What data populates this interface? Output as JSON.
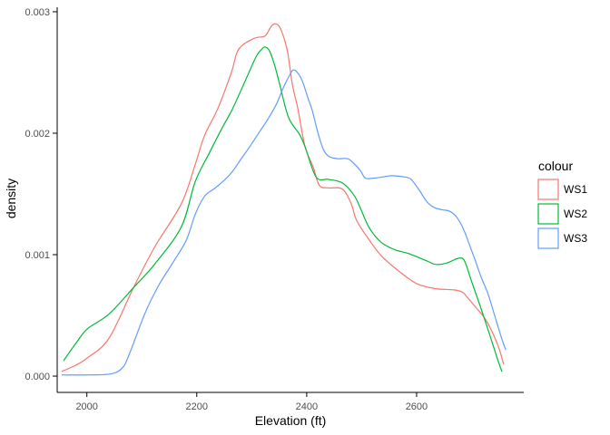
{
  "figure": {
    "background": "#FFFFFF"
  },
  "chart_data": {
    "type": "line",
    "subtype": "kernel-density",
    "title": "",
    "xlabel": "Elevation (ft)",
    "ylabel": "density",
    "xlim": [
      1946,
      2795
    ],
    "ylim": [
      -0.000134,
      0.003037
    ],
    "grid": "off",
    "axis_line_color": "#000000",
    "tick_label_color": "#4D4D4D",
    "x_ticks": {
      "values": [
        2000,
        2200,
        2400,
        2600
      ],
      "labels": [
        "2000",
        "2200",
        "2400",
        "2600"
      ]
    },
    "y_ticks": {
      "values": [
        0,
        0.001,
        0.002,
        0.003
      ],
      "labels": [
        "0.000",
        "0.001",
        "0.002",
        "0.003"
      ]
    },
    "legend": {
      "title": "colour",
      "position": "right",
      "entries": [
        {
          "label": "WS1",
          "color": "#F8766D"
        },
        {
          "label": "WS2",
          "color": "#00BA38"
        },
        {
          "label": "WS3",
          "color": "#619CFF"
        }
      ]
    },
    "series": [
      {
        "name": "WS1",
        "color": "#F8766D",
        "points": [
          [
            1955,
            4e-05
          ],
          [
            1980,
            9e-05
          ],
          [
            2001,
            0.00015
          ],
          [
            2040,
            0.00031
          ],
          [
            2085,
            0.00073
          ],
          [
            2123,
            0.00106
          ],
          [
            2172,
            0.00142
          ],
          [
            2197,
            0.00174
          ],
          [
            2214,
            0.00198
          ],
          [
            2238,
            0.0022
          ],
          [
            2263,
            0.0025
          ],
          [
            2276,
            0.00269
          ],
          [
            2304,
            0.00278
          ],
          [
            2324,
            0.0028
          ],
          [
            2334,
            0.00287
          ],
          [
            2341,
            0.0029
          ],
          [
            2350,
            0.00288
          ],
          [
            2359,
            0.00278
          ],
          [
            2366,
            0.00265
          ],
          [
            2374,
            0.0024
          ],
          [
            2384,
            0.0022
          ],
          [
            2397,
            0.00189
          ],
          [
            2412,
            0.00172
          ],
          [
            2423,
            0.00157
          ],
          [
            2440,
            0.00155
          ],
          [
            2465,
            0.00154
          ],
          [
            2481,
            0.00142
          ],
          [
            2491,
            0.00128
          ],
          [
            2514,
            0.00112
          ],
          [
            2536,
            0.00099
          ],
          [
            2569,
            0.00086
          ],
          [
            2601,
            0.00076
          ],
          [
            2634,
            0.00072
          ],
          [
            2668,
            0.00071
          ],
          [
            2684,
            0.00069
          ],
          [
            2692,
            0.00065
          ],
          [
            2709,
            0.00056
          ],
          [
            2725,
            0.00047
          ],
          [
            2742,
            0.00032
          ],
          [
            2752,
            0.0002
          ],
          [
            2758,
            0.0001
          ]
        ]
      },
      {
        "name": "WS2",
        "color": "#00BA38",
        "points": [
          [
            1958,
            0.00013
          ],
          [
            1980,
            0.00027
          ],
          [
            2001,
            0.00039
          ],
          [
            2040,
            0.00051
          ],
          [
            2085,
            0.00073
          ],
          [
            2123,
            0.00092
          ],
          [
            2172,
            0.00123
          ],
          [
            2197,
            0.0016
          ],
          [
            2222,
            0.00183
          ],
          [
            2247,
            0.00205
          ],
          [
            2265,
            0.0022
          ],
          [
            2288,
            0.00243
          ],
          [
            2308,
            0.00263
          ],
          [
            2318,
            0.00269
          ],
          [
            2324,
            0.00271
          ],
          [
            2332,
            0.00268
          ],
          [
            2341,
            0.00257
          ],
          [
            2351,
            0.0024
          ],
          [
            2367,
            0.00213
          ],
          [
            2387,
            0.00199
          ],
          [
            2397,
            0.00189
          ],
          [
            2417,
            0.00164
          ],
          [
            2440,
            0.00162
          ],
          [
            2465,
            0.00159
          ],
          [
            2486,
            0.00149
          ],
          [
            2498,
            0.00138
          ],
          [
            2514,
            0.00122
          ],
          [
            2536,
            0.0011
          ],
          [
            2561,
            0.00104
          ],
          [
            2585,
            0.00101
          ],
          [
            2618,
            0.00095
          ],
          [
            2634,
            0.00092
          ],
          [
            2654,
            0.00093
          ],
          [
            2676,
            0.00097
          ],
          [
            2687,
            0.00095
          ],
          [
            2700,
            0.00078
          ],
          [
            2717,
            0.00056
          ],
          [
            2733,
            0.00034
          ],
          [
            2748,
            0.00013
          ],
          [
            2755,
            4e-05
          ]
        ]
      },
      {
        "name": "WS3",
        "color": "#619CFF",
        "points": [
          [
            1955,
            1e-05
          ],
          [
            2007,
            1e-05
          ],
          [
            2045,
            2e-05
          ],
          [
            2065,
            7e-05
          ],
          [
            2078,
            0.00019
          ],
          [
            2106,
            0.00052
          ],
          [
            2131,
            0.00075
          ],
          [
            2156,
            0.00093
          ],
          [
            2181,
            0.00112
          ],
          [
            2197,
            0.00133
          ],
          [
            2214,
            0.00148
          ],
          [
            2231,
            0.00154
          ],
          [
            2247,
            0.0016
          ],
          [
            2264,
            0.00168
          ],
          [
            2281,
            0.00179
          ],
          [
            2298,
            0.0019
          ],
          [
            2314,
            0.00201
          ],
          [
            2330,
            0.00212
          ],
          [
            2345,
            0.00224
          ],
          [
            2358,
            0.00238
          ],
          [
            2368,
            0.00247
          ],
          [
            2375,
            0.00252
          ],
          [
            2383,
            0.0025
          ],
          [
            2392,
            0.00243
          ],
          [
            2403,
            0.00228
          ],
          [
            2410,
            0.00219
          ],
          [
            2420,
            0.00201
          ],
          [
            2430,
            0.00187
          ],
          [
            2440,
            0.00181
          ],
          [
            2456,
            0.00179
          ],
          [
            2474,
            0.00179
          ],
          [
            2486,
            0.00175
          ],
          [
            2498,
            0.00169
          ],
          [
            2507,
            0.00163
          ],
          [
            2522,
            0.00163
          ],
          [
            2539,
            0.00164
          ],
          [
            2555,
            0.00165
          ],
          [
            2577,
            0.00164
          ],
          [
            2590,
            0.00162
          ],
          [
            2605,
            0.00153
          ],
          [
            2618,
            0.00144
          ],
          [
            2631,
            0.00139
          ],
          [
            2646,
            0.00137
          ],
          [
            2659,
            0.00136
          ],
          [
            2671,
            0.00132
          ],
          [
            2681,
            0.00125
          ],
          [
            2689,
            0.00117
          ],
          [
            2697,
            0.00107
          ],
          [
            2707,
            0.00095
          ],
          [
            2717,
            0.00082
          ],
          [
            2729,
            0.00069
          ],
          [
            2738,
            0.00056
          ],
          [
            2748,
            0.00041
          ],
          [
            2757,
            0.00028
          ],
          [
            2762,
            0.00022
          ]
        ]
      }
    ]
  }
}
